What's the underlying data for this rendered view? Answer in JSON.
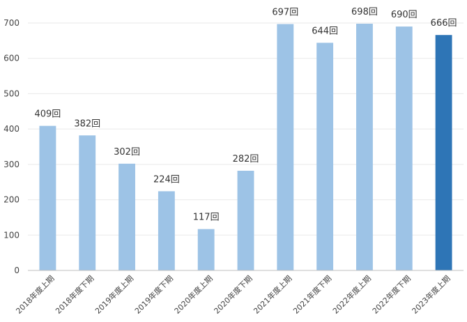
{
  "chart_data": {
    "type": "bar",
    "title": "",
    "xlabel": "",
    "ylabel": "",
    "ylim": [
      0,
      700
    ],
    "yticks": [
      0,
      100,
      200,
      300,
      400,
      500,
      600,
      700
    ],
    "grid": true,
    "legend": "none",
    "categories": [
      "2018年度上期",
      "2018年度下期",
      "2019年度上期",
      "2019年度下期",
      "2020年度上期",
      "2020年度下期",
      "2021年度上期",
      "2021年度下期",
      "2022年度上期",
      "2022年度下期",
      "2023年度上期"
    ],
    "values": [
      409,
      382,
      302,
      224,
      117,
      282,
      697,
      644,
      698,
      690,
      666
    ],
    "data_labels": [
      "409回",
      "382回",
      "302回",
      "224回",
      "117回",
      "282回",
      "697回",
      "644回",
      "698回",
      "690回",
      "666回"
    ],
    "highlight_index": 10,
    "colors": {
      "bar": "#9dc3e6",
      "highlight": "#2e75b6",
      "grid": "#e9e9e9",
      "axis": "#bfbfbf"
    }
  }
}
